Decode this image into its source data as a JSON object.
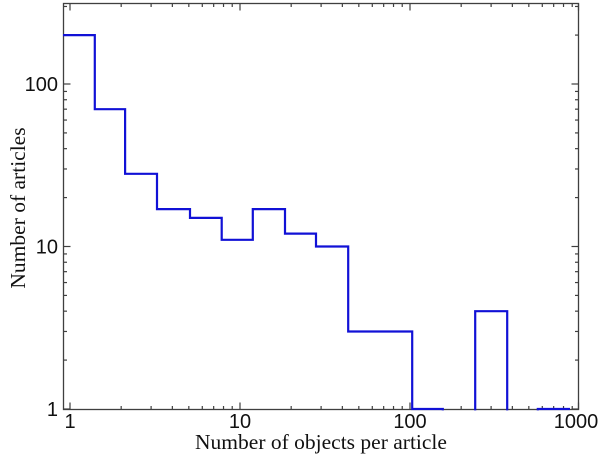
{
  "figure": {
    "background": "#ffffff",
    "spine_color": "#3f3f3f",
    "tick_color": "#3f3f3f",
    "text_color": "#111111",
    "line_color": "#1111d6"
  },
  "chart_data": {
    "type": "line",
    "subtype": "log-binned-histogram-stairs",
    "title": "",
    "xlabel": "Number of objects per article",
    "ylabel": "Number of articles",
    "xscale": "log",
    "yscale": "log",
    "xlim": [
      0.91,
      1000
    ],
    "ylim": [
      1,
      312
    ],
    "grid": false,
    "legend": null,
    "x_major_ticks": [
      1,
      10,
      100,
      1000
    ],
    "x_major_tick_labels": [
      "1",
      "10",
      "100",
      "1000"
    ],
    "y_major_ticks": [
      1,
      10,
      100
    ],
    "y_major_tick_labels": [
      "1",
      "10",
      "100"
    ],
    "minor_tick_multipliers": [
      2,
      3,
      4,
      5,
      6,
      7,
      8,
      9
    ],
    "bin_edges": [
      0.91,
      1.4,
      2.11,
      3.25,
      5.08,
      7.8,
      11.9,
      18.4,
      28,
      43.3,
      66.6,
      103,
      156,
      242,
      373,
      565,
      873
    ],
    "counts": [
      200,
      70,
      28,
      17,
      15,
      11,
      17,
      12,
      10,
      3,
      3,
      1,
      0,
      4,
      0,
      1
    ]
  }
}
